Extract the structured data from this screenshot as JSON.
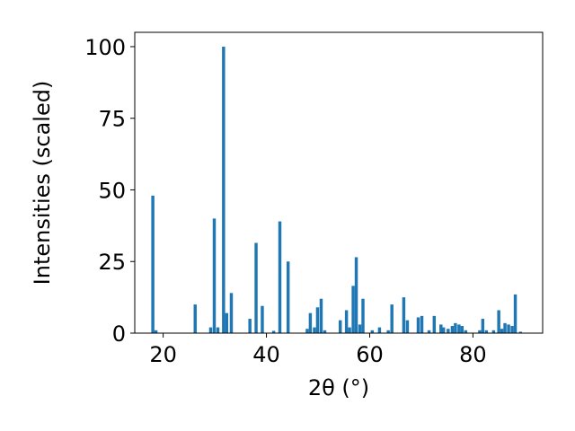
{
  "chart_data": {
    "type": "bar",
    "xlabel": "2θ (°)",
    "ylabel": "Intensities (scaled)",
    "xlim": [
      14.5,
      93.5
    ],
    "ylim": [
      0,
      105
    ],
    "xticks": [
      20,
      40,
      60,
      80
    ],
    "yticks": [
      0,
      25,
      50,
      75,
      100
    ],
    "bar_color": "#1f77b4",
    "bar_width": 0.6,
    "x": [
      18.0,
      18.6,
      26.2,
      29.2,
      29.9,
      30.6,
      31.7,
      32.3,
      33.2,
      36.8,
      38.0,
      39.2,
      41.4,
      42.6,
      44.2,
      47.9,
      48.5,
      49.3,
      49.9,
      50.6,
      51.3,
      54.3,
      55.5,
      56.1,
      56.8,
      57.4,
      58.1,
      58.7,
      60.5,
      61.9,
      63.6,
      64.3,
      66.6,
      67.3,
      69.4,
      70.1,
      71.5,
      72.5,
      73.8,
      74.3,
      75.2,
      76.0,
      76.6,
      77.3,
      77.9,
      78.6,
      81.3,
      81.9,
      82.6,
      84.0,
      85.0,
      85.6,
      86.2,
      86.9,
      87.6,
      88.2,
      89.2
    ],
    "values": [
      48,
      1,
      10,
      2,
      40,
      2,
      100,
      7,
      14,
      5,
      31.5,
      9.5,
      0.8,
      39,
      25,
      1.5,
      7,
      2,
      9,
      12,
      1,
      4.5,
      8,
      2,
      16.5,
      26.5,
      3,
      12,
      1,
      2,
      1,
      10,
      12.5,
      4.5,
      5.5,
      6,
      1,
      6,
      3,
      2,
      1.5,
      2.5,
      3.5,
      3,
      2.5,
      1,
      1,
      5,
      1,
      1,
      8,
      1.5,
      3.5,
      3,
      2.5,
      13.5,
      0.5
    ]
  }
}
